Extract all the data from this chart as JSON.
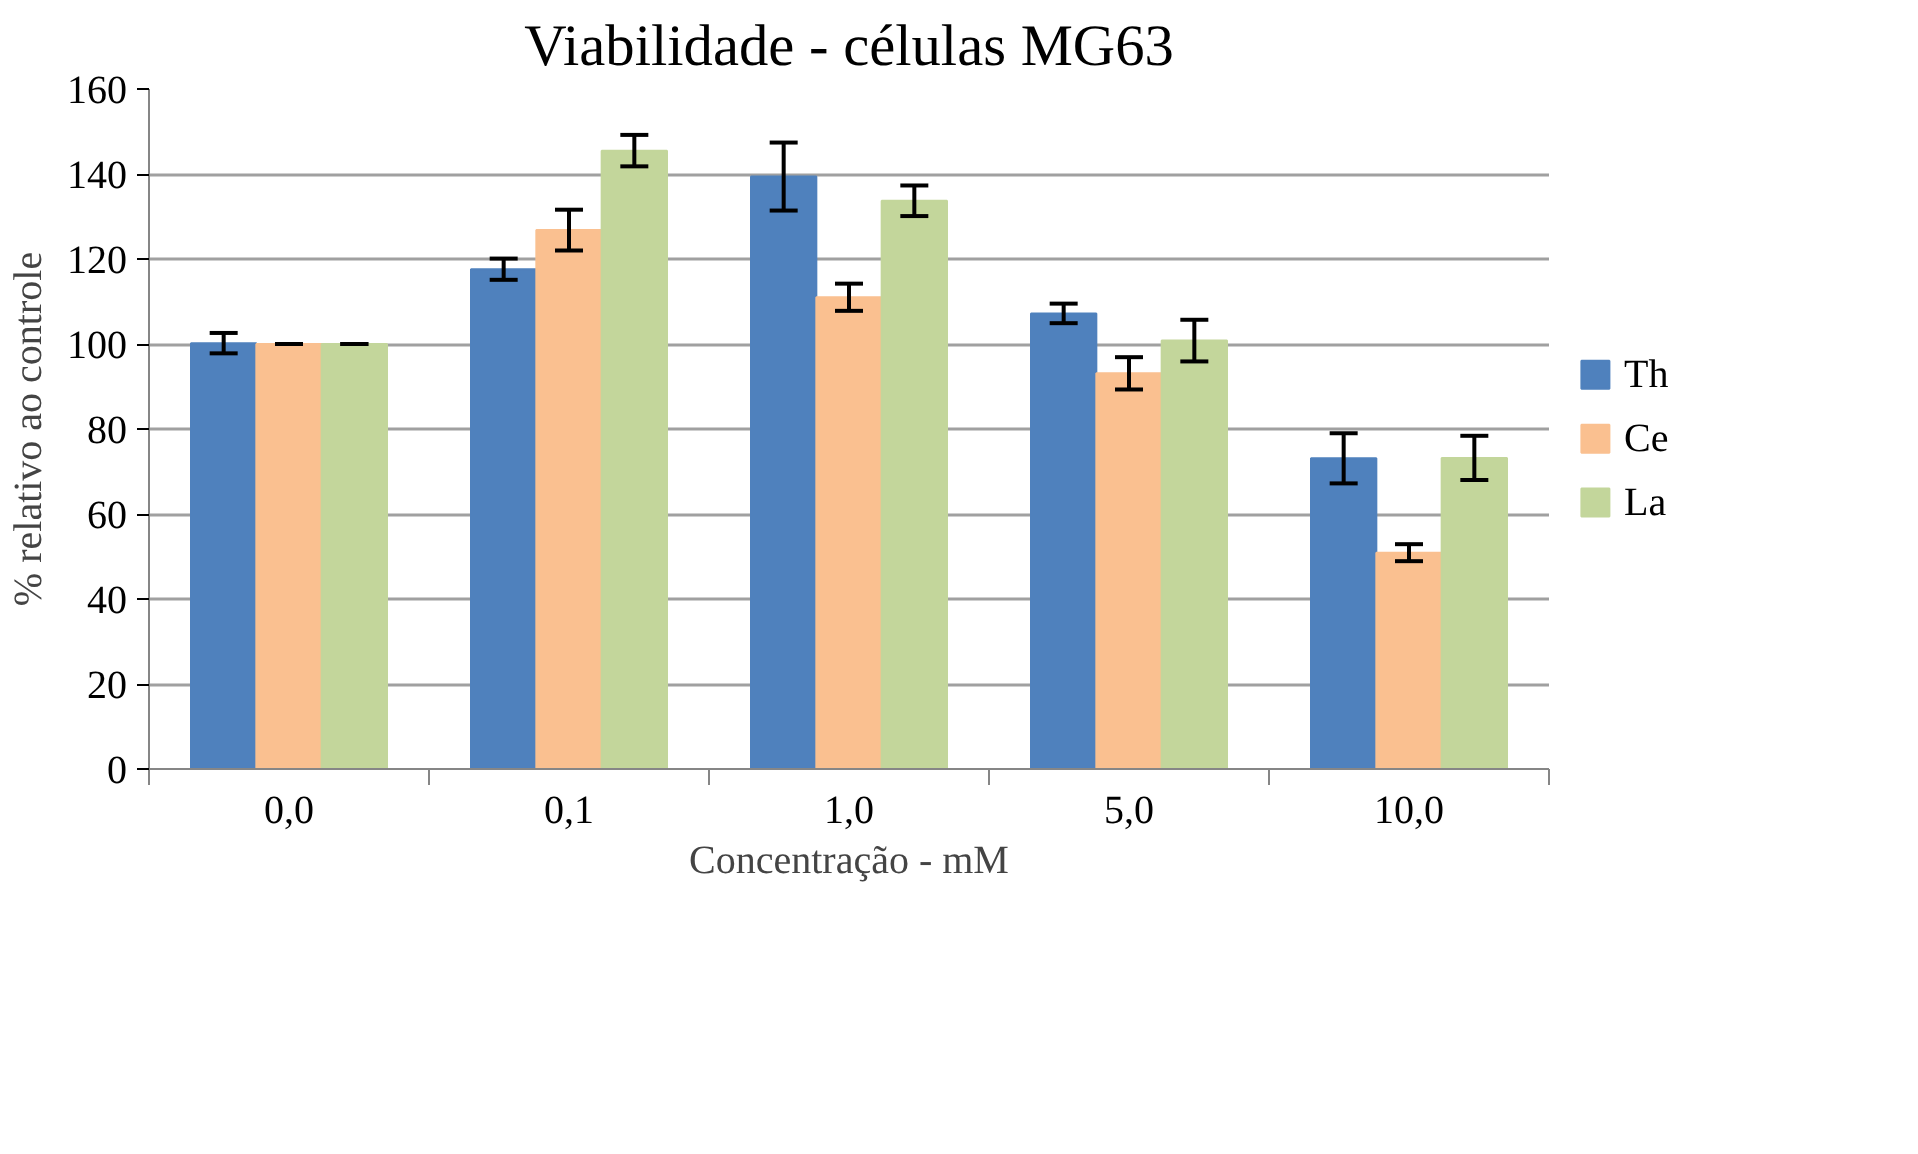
{
  "chart_data": {
    "type": "bar",
    "title": "Viabilidade - células MG63",
    "xlabel": "Concentração - mM",
    "ylabel": "% relativo ao controle",
    "categories": [
      "0,0",
      "0,1",
      "1,0",
      "5,0",
      "10,0"
    ],
    "series": [
      {
        "name": "Th",
        "color": "#4f81bd",
        "values": [
          100.2,
          117.6,
          139.4,
          107.2,
          73.1
        ],
        "errors": [
          2.4,
          2.5,
          8,
          2.3,
          5.9
        ]
      },
      {
        "name": "Ce",
        "color": "#fac090",
        "values": [
          100,
          126.8,
          111,
          93.1,
          50.9
        ],
        "errors": [
          0,
          4.8,
          3.2,
          3.8,
          2
        ]
      },
      {
        "name": "La",
        "color": "#c3d69b",
        "values": [
          100,
          145.5,
          133.7,
          100.8,
          73.2
        ],
        "errors": [
          0,
          3.7,
          3.6,
          4.9,
          5.2
        ]
      }
    ],
    "ylim": [
      0,
      160
    ],
    "yticks": [
      0,
      20,
      40,
      60,
      80,
      100,
      120,
      140,
      160
    ],
    "grid": "y",
    "legend": "right"
  }
}
